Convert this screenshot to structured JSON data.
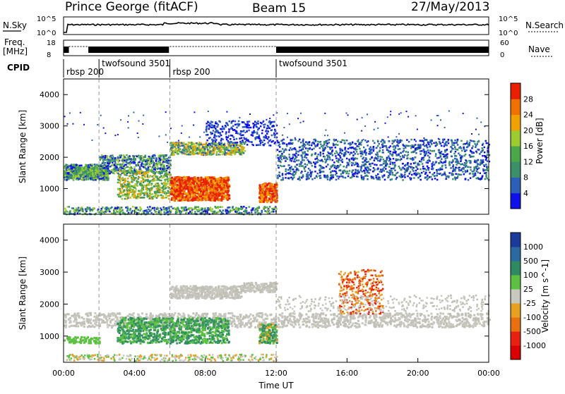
{
  "header": {
    "station": "Prince George (fitACF)",
    "beam": "Beam 15",
    "date": "27/May/2013"
  },
  "top_panels": {
    "nsky_label": "N.Sky",
    "nsky_ticks": [
      "10^5",
      "10^0"
    ],
    "nsearch_label": "N.Search",
    "nsearch_ticks": [
      "10^5",
      "10^0"
    ],
    "freq_label": "Freq.",
    "freq_unit": "[MHz]",
    "freq_ticks": [
      "18",
      "8"
    ],
    "nave_label": "Nave",
    "nave_ticks": [
      "60",
      "0"
    ],
    "cpid_label": "CPID",
    "cpid_segments": [
      {
        "name": "rbsp 200",
        "start_hour": 0
      },
      {
        "name": "twofsound 3501",
        "start_hour": 2
      },
      {
        "name": "rbsp 200",
        "start_hour": 6
      },
      {
        "name": "twofsound 3501",
        "start_hour": 12
      }
    ]
  },
  "chart_data": [
    {
      "type": "heatmap",
      "quantity": "Power",
      "ylabel": "Slant Range [km]",
      "ylim": [
        180,
        4500
      ],
      "yticks": [
        "1000",
        "2000",
        "3000",
        "4000"
      ],
      "xlim": [
        0,
        24
      ],
      "colorbar_label": "Power [dB]",
      "colorbar_ticks": [
        "4",
        "8",
        "12",
        "16",
        "20",
        "24",
        "28"
      ],
      "colorbar_colors": [
        "#1010e8",
        "#2c5fb8",
        "#3b8f6a",
        "#4aa84a",
        "#9ccc30",
        "#f0a000",
        "#f07000",
        "#e82000"
      ],
      "mode_change_hours": [
        2,
        6,
        12
      ]
    },
    {
      "type": "heatmap",
      "quantity": "Velocity",
      "ylabel": "Slant Range [km]",
      "ylim": [
        180,
        4500
      ],
      "yticks": [
        "1000",
        "2000",
        "3000",
        "4000"
      ],
      "xlim": [
        0,
        24
      ],
      "xticks": [
        "00:00",
        "04:00",
        "08:00",
        "12:00",
        "16:00",
        "20:00",
        "00:00"
      ],
      "xlabel": "Time UT",
      "colorbar_label": "Velocity [m s^-1]",
      "colorbar_ticks": [
        "1000",
        "500",
        "100",
        "25",
        "-25",
        "-100",
        "-500",
        "-1000"
      ],
      "colorbar_colors": [
        "#1a3a9c",
        "#2a6aa0",
        "#2e8a60",
        "#5cc040",
        "#c8c8c0",
        "#e8a020",
        "#e87010",
        "#e82010",
        "#d80000"
      ],
      "mode_change_hours": [
        2,
        6,
        12
      ]
    }
  ]
}
